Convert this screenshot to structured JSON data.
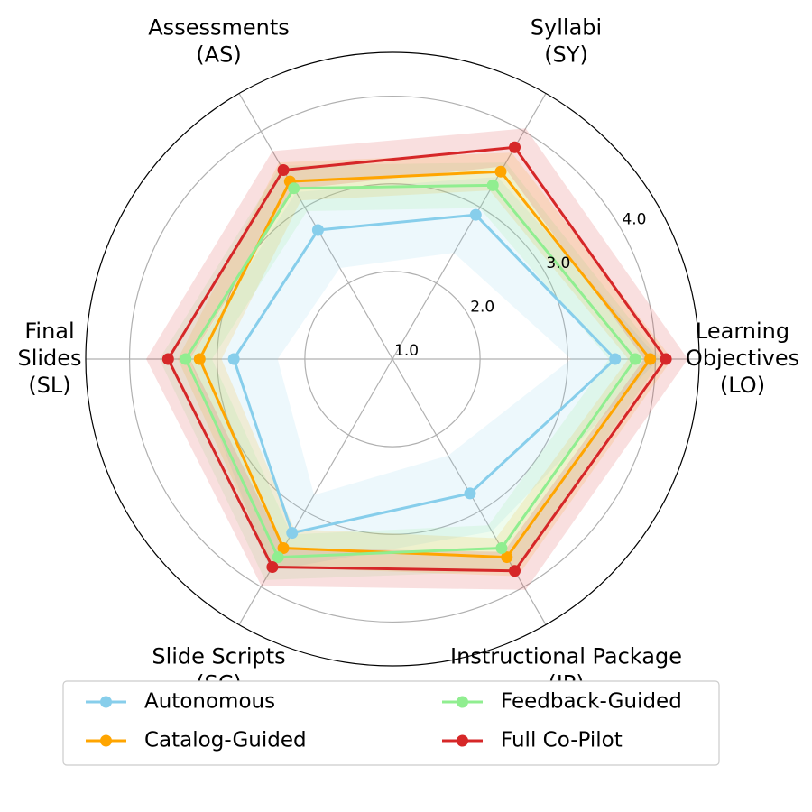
{
  "chart_data": {
    "type": "radar",
    "categories": [
      [
        "Learning",
        "Objectives",
        "(LO)"
      ],
      [
        "Syllabi",
        "(SY)"
      ],
      [
        "Assessments",
        "(AS)"
      ],
      [
        "Final",
        "Slides",
        "(SL)"
      ],
      [
        "Slide Scripts",
        "(SC)"
      ],
      [
        "Instructional Package",
        "(IP)"
      ]
    ],
    "series": [
      {
        "name": "Autonomous",
        "color": "#87ceeb",
        "values": [
          3.54,
          2.9,
          2.7,
          2.81,
          3.29,
          2.77
        ],
        "errors": [
          0.5,
          0.5,
          0.5,
          0.5,
          0.5,
          0.5
        ]
      },
      {
        "name": "Catalog-Guided",
        "color": "#ffa500",
        "values": [
          3.94,
          3.47,
          3.34,
          3.2,
          3.49,
          3.61
        ],
        "errors": [
          0.25,
          0.25,
          0.25,
          0.25,
          0.25,
          0.25
        ]
      },
      {
        "name": "Feedback-Guided",
        "color": "#90ee90",
        "values": [
          3.77,
          3.29,
          3.25,
          3.36,
          3.61,
          3.49
        ],
        "errors": [
          0.3,
          0.3,
          0.3,
          0.3,
          0.3,
          0.3
        ]
      },
      {
        "name": "Full Co-Pilot",
        "color": "#d62728",
        "values": [
          4.12,
          3.79,
          3.49,
          3.56,
          3.74,
          3.79
        ],
        "errors": [
          0.25,
          0.25,
          0.25,
          0.25,
          0.25,
          0.25
        ]
      }
    ],
    "ylim": [
      1,
      4.5
    ],
    "yticks": [
      {
        "value": 1,
        "label": "1.0"
      },
      {
        "value": 2,
        "label": "2.0"
      },
      {
        "value": 3,
        "label": "3.0"
      },
      {
        "value": 4,
        "label": "4.0"
      }
    ],
    "grid": true,
    "legend": "bottom"
  }
}
